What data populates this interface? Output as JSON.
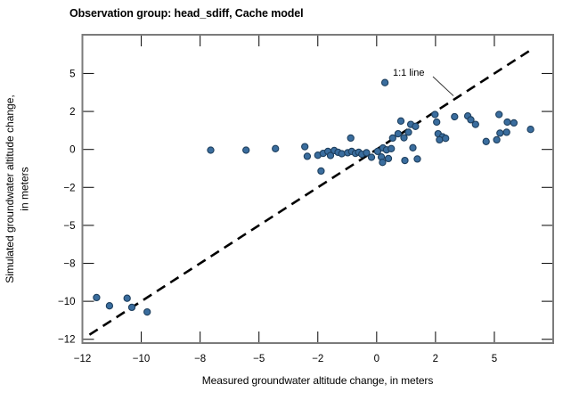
{
  "title": "Observation group: head_sdiff, Cache model",
  "colors": {
    "point_fill": "#3a6d9e",
    "point_stroke": "#1e3f5e",
    "frame": "#7b7b7b",
    "line": "#000000",
    "text": "#000000"
  },
  "chart_data": {
    "type": "scatter",
    "title": "Observation group: head_sdiff, Cache model",
    "xlabel": "Measured groundwater altitude change, in meters",
    "ylabel": "Simulated groundwater altitude change, in meters",
    "ylabel_lines": [
      "Simulated groundwater altitude change,",
      "in meters"
    ],
    "xlim": [
      -12.5,
      7.5
    ],
    "ylim": [
      -12.75,
      7.55
    ],
    "grid": false,
    "x_ticks": [
      {
        "value": -12.5,
        "label": "−12",
        "mark": false
      },
      {
        "value": -10,
        "label": "−10",
        "mark": true
      },
      {
        "value": -7.5,
        "label": "−8",
        "mark": true
      },
      {
        "value": -5,
        "label": "−5",
        "mark": true
      },
      {
        "value": -2.5,
        "label": "−2",
        "mark": true
      },
      {
        "value": 0,
        "label": "0",
        "mark": true
      },
      {
        "value": 2.5,
        "label": "2",
        "mark": true
      },
      {
        "value": 5,
        "label": "5",
        "mark": true
      }
    ],
    "y_ticks": [
      {
        "value": 5,
        "label": "5",
        "mark": true
      },
      {
        "value": 2.5,
        "label": "2",
        "mark": true
      },
      {
        "value": 0,
        "label": "0",
        "mark": true
      },
      {
        "value": -2.5,
        "label": "−2",
        "mark": true
      },
      {
        "value": -5,
        "label": "−5",
        "mark": true
      },
      {
        "value": -7.5,
        "label": "−8",
        "mark": true
      },
      {
        "value": -10,
        "label": "−10",
        "mark": true
      },
      {
        "value": -12.5,
        "label": "−12",
        "mark": true
      }
    ],
    "one_to_one_line": {
      "label": "1:1 line",
      "x_from": -12.2,
      "x_to": 6.6
    },
    "points": [
      [
        -11.9,
        -9.75
      ],
      [
        -11.35,
        -10.3
      ],
      [
        -10.6,
        -9.8
      ],
      [
        -10.4,
        -10.4
      ],
      [
        -9.75,
        -10.7
      ],
      [
        -7.05,
        -0.05
      ],
      [
        -5.55,
        -0.05
      ],
      [
        -4.3,
        0.05
      ],
      [
        -3.05,
        0.18
      ],
      [
        -2.95,
        -0.45
      ],
      [
        -2.5,
        -0.38
      ],
      [
        -2.36,
        -1.42
      ],
      [
        -2.27,
        -0.26
      ],
      [
        -2.07,
        -0.13
      ],
      [
        -1.96,
        -0.4
      ],
      [
        -1.8,
        -0.07
      ],
      [
        -1.64,
        -0.19
      ],
      [
        -1.48,
        -0.28
      ],
      [
        -1.23,
        -0.22
      ],
      [
        -1.1,
        0.75
      ],
      [
        -1.06,
        -0.13
      ],
      [
        -0.9,
        -0.26
      ],
      [
        -0.76,
        -0.19
      ],
      [
        -0.63,
        -0.32
      ],
      [
        -0.43,
        -0.22
      ],
      [
        -0.22,
        -0.52
      ],
      [
        0.04,
        -0.13
      ],
      [
        0.27,
        0.1
      ],
      [
        0.2,
        -0.5
      ],
      [
        0.42,
        -0.03
      ],
      [
        0.25,
        -0.85
      ],
      [
        0.5,
        -0.6
      ],
      [
        0.35,
        4.4
      ],
      [
        0.62,
        0.05
      ],
      [
        0.68,
        0.75
      ],
      [
        0.91,
        1.03
      ],
      [
        1.03,
        1.87
      ],
      [
        1.16,
        0.77
      ],
      [
        1.35,
        1.13
      ],
      [
        1.45,
        1.65
      ],
      [
        1.65,
        1.52
      ],
      [
        1.54,
        0.11
      ],
      [
        1.2,
        -0.73
      ],
      [
        1.73,
        -0.63
      ],
      [
        2.48,
        2.3
      ],
      [
        2.55,
        1.8
      ],
      [
        2.61,
        1.03
      ],
      [
        2.8,
        0.83
      ],
      [
        2.67,
        0.63
      ],
      [
        2.93,
        0.73
      ],
      [
        3.31,
        2.15
      ],
      [
        3.87,
        2.2
      ],
      [
        4.0,
        1.95
      ],
      [
        4.2,
        1.65
      ],
      [
        4.65,
        0.52
      ],
      [
        5.2,
        2.3
      ],
      [
        5.55,
        1.8
      ],
      [
        5.83,
        1.75
      ],
      [
        5.24,
        1.07
      ],
      [
        5.52,
        1.13
      ],
      [
        5.1,
        0.63
      ],
      [
        6.54,
        1.32
      ]
    ]
  }
}
